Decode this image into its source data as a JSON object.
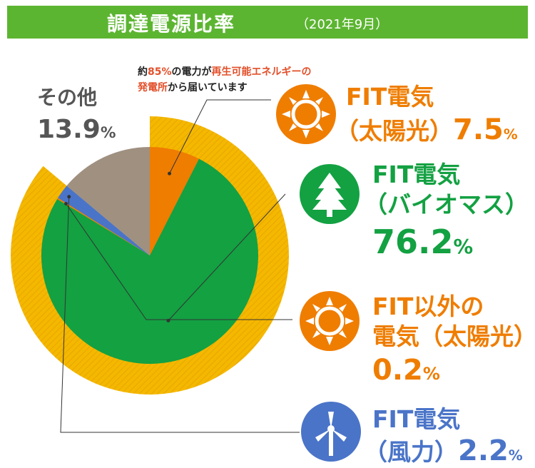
{
  "header": {
    "title": "調達電源比率",
    "date": "（2021年9月）"
  },
  "note": {
    "line1_prefix": "約",
    "line1_pct": "85%",
    "line1_mid": "の電力が",
    "line1_hl": "再生可能エネルギーの",
    "line2_hl": "発電所",
    "line2_rest": "から届いています"
  },
  "labels": {
    "solar": {
      "name": "FIT電気",
      "sub": "（太陽光）",
      "value": "7.5",
      "unit": "%"
    },
    "biomass": {
      "name": "FIT電気",
      "sub": "（バイオマス）",
      "value": "76.2",
      "unit": "%"
    },
    "nonfit_solar": {
      "name": "FIT以外の",
      "sub": "電気（太陽光）",
      "value": "0.2",
      "unit": "%"
    },
    "wind": {
      "name": "FIT電気",
      "sub": "（風力）",
      "value": "2.2",
      "unit": "%"
    },
    "other": {
      "name": "その他",
      "value": "13.9",
      "unit": "%"
    }
  },
  "colors": {
    "header": "#5cb531",
    "solar": "#ef7d00",
    "biomass": "#13a142",
    "nonfit_solar": "#ef7d00",
    "wind": "#4a74c8",
    "other": "#a09080",
    "renewable_ring": "#f5b800"
  },
  "icons": {
    "solar": "sun-icon",
    "biomass": "tree-icon",
    "nonfit_solar": "sun-icon",
    "wind": "wind-turbine-icon"
  },
  "chart_data": {
    "type": "pie",
    "title": "調達電源比率",
    "subtitle": "（2021年9月）",
    "series": [
      {
        "name": "FIT電気（太陽光）",
        "value": 7.5
      },
      {
        "name": "FIT電気（バイオマス）",
        "value": 76.2
      },
      {
        "name": "FIT以外の電気（太陽光）",
        "value": 0.2
      },
      {
        "name": "FIT電気（風力）",
        "value": 2.2
      },
      {
        "name": "その他",
        "value": 13.9
      }
    ],
    "annotation": "約85%の電力が再生可能エネルギーの発電所から届いています"
  }
}
